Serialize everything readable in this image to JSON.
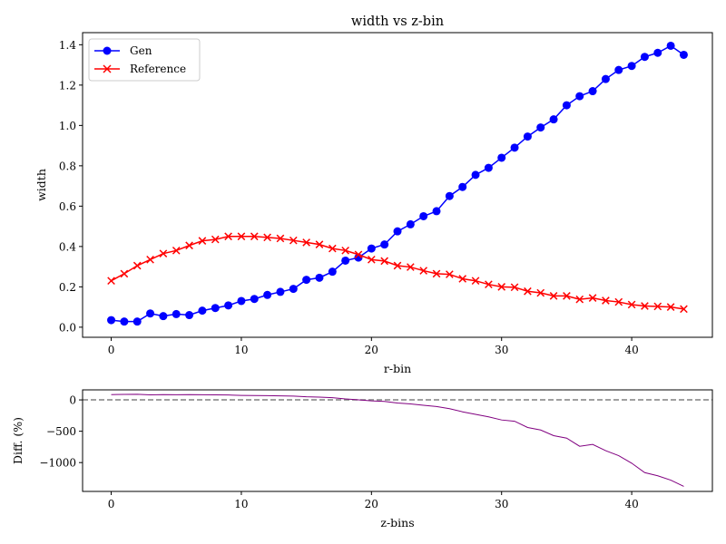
{
  "chart_data": [
    {
      "type": "line",
      "title": "width vs z-bin",
      "xlabel": "r-bin",
      "ylabel": "width",
      "xlim": [
        -2.2,
        46.2
      ],
      "ylim": [
        -0.05,
        1.46
      ],
      "xticks": [
        0,
        10,
        20,
        30,
        40
      ],
      "yticks": [
        0.0,
        0.2,
        0.4,
        0.6,
        0.8,
        1.0,
        1.2,
        1.4
      ],
      "grid": false,
      "legend": "top-left",
      "x": [
        0,
        1,
        2,
        3,
        4,
        5,
        6,
        7,
        8,
        9,
        10,
        11,
        12,
        13,
        14,
        15,
        16,
        17,
        18,
        19,
        20,
        21,
        22,
        23,
        24,
        25,
        26,
        27,
        28,
        29,
        30,
        31,
        32,
        33,
        34,
        35,
        36,
        37,
        38,
        39,
        40,
        41,
        42,
        43,
        44
      ],
      "series": [
        {
          "name": "Gen",
          "color": "#0000ff",
          "marker": "circle",
          "values": [
            0.035,
            0.028,
            0.028,
            0.068,
            0.055,
            0.065,
            0.06,
            0.082,
            0.095,
            0.108,
            0.13,
            0.14,
            0.16,
            0.175,
            0.19,
            0.235,
            0.245,
            0.275,
            0.33,
            0.345,
            0.39,
            0.41,
            0.475,
            0.51,
            0.55,
            0.575,
            0.65,
            0.695,
            0.755,
            0.79,
            0.84,
            0.89,
            0.945,
            0.99,
            1.03,
            1.1,
            1.145,
            1.17,
            1.23,
            1.275,
            1.295,
            1.34,
            1.36,
            1.395,
            1.35
          ]
        },
        {
          "name": "Reference",
          "color": "#ff0000",
          "marker": "x",
          "values": [
            0.23,
            0.265,
            0.305,
            0.335,
            0.365,
            0.38,
            0.405,
            0.428,
            0.435,
            0.45,
            0.45,
            0.45,
            0.445,
            0.44,
            0.43,
            0.42,
            0.41,
            0.39,
            0.38,
            0.36,
            0.335,
            0.328,
            0.305,
            0.298,
            0.28,
            0.265,
            0.262,
            0.24,
            0.23,
            0.212,
            0.2,
            0.198,
            0.178,
            0.17,
            0.155,
            0.155,
            0.138,
            0.145,
            0.132,
            0.125,
            0.112,
            0.105,
            0.103,
            0.1,
            0.09
          ]
        }
      ]
    },
    {
      "type": "line",
      "xlabel": "z-bins",
      "ylabel": "Diff. (%)",
      "xlim": [
        -2.2,
        46.2
      ],
      "ylim": [
        -1460,
        160
      ],
      "xticks": [
        0,
        10,
        20,
        30,
        40
      ],
      "yticks": [
        0,
        -500,
        -1000
      ],
      "reference_line": 0,
      "grid": false,
      "x": [
        0,
        1,
        2,
        3,
        4,
        5,
        6,
        7,
        8,
        9,
        10,
        11,
        12,
        13,
        14,
        15,
        16,
        17,
        18,
        19,
        20,
        21,
        22,
        23,
        24,
        25,
        26,
        27,
        28,
        29,
        30,
        31,
        32,
        33,
        34,
        35,
        36,
        37,
        38,
        39,
        40,
        41,
        42,
        43,
        44
      ],
      "series": [
        {
          "color": "#800080",
          "values": [
            85,
            88,
            90,
            80,
            85,
            83,
            85,
            82,
            80,
            78,
            72,
            70,
            68,
            65,
            60,
            50,
            45,
            35,
            15,
            0,
            -15,
            -25,
            -50,
            -65,
            -85,
            -105,
            -140,
            -190,
            -230,
            -270,
            -320,
            -340,
            -440,
            -480,
            -570,
            -610,
            -740,
            -710,
            -810,
            -890,
            -1010,
            -1160,
            -1210,
            -1280,
            -1380
          ]
        }
      ]
    }
  ]
}
